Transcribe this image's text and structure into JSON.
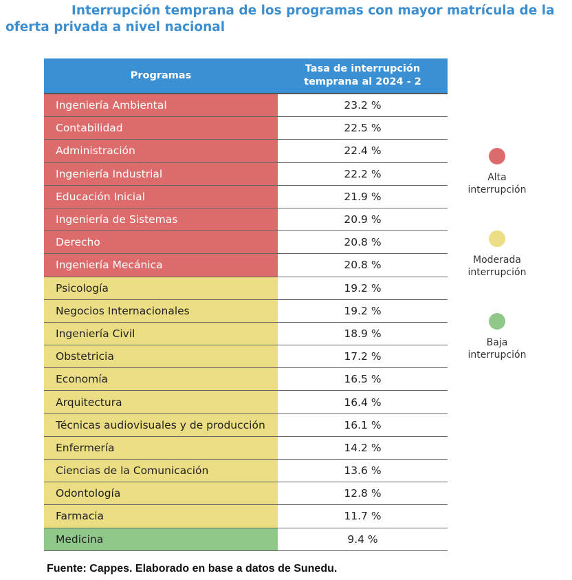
{
  "title_line1": "Interrupción temprana de los programas con mayor matrícula de la",
  "title_line2": "oferta privada a nivel nacional",
  "colors": {
    "header": "#3a90d2",
    "alta": "#dd6b6b",
    "moderada": "#ebdd84",
    "baja": "#8fc98a",
    "title": "#3b8fd1"
  },
  "chart_data": {
    "type": "table",
    "columns": [
      "Programas",
      "Tasa de interrupción temprana al 2024 - 2"
    ],
    "rows": [
      {
        "program": "Ingeniería Ambiental",
        "rate": "23.2 %",
        "level": "alta"
      },
      {
        "program": "Contabilidad",
        "rate": "22.5 %",
        "level": "alta"
      },
      {
        "program": "Administración",
        "rate": "22.4 %",
        "level": "alta"
      },
      {
        "program": "Ingeniería Industrial",
        "rate": "22.2 %",
        "level": "alta"
      },
      {
        "program": "Educación Inicial",
        "rate": "21.9 %",
        "level": "alta"
      },
      {
        "program": "Ingeniería de Sistemas",
        "rate": "20.9 %",
        "level": "alta"
      },
      {
        "program": "Derecho",
        "rate": "20.8 %",
        "level": "alta"
      },
      {
        "program": "Ingeniería Mecánica",
        "rate": "20.8 %",
        "level": "alta"
      },
      {
        "program": "Psicología",
        "rate": "19.2 %",
        "level": "moderada"
      },
      {
        "program": "Negocios Internacionales",
        "rate": "19.2 %",
        "level": "moderada"
      },
      {
        "program": "Ingeniería Civil",
        "rate": "18.9 %",
        "level": "moderada"
      },
      {
        "program": "Obstetricia",
        "rate": "17.2 %",
        "level": "moderada"
      },
      {
        "program": "Economía",
        "rate": "16.5 %",
        "level": "moderada"
      },
      {
        "program": "Arquitectura",
        "rate": "16.4 %",
        "level": "moderada"
      },
      {
        "program": "Técnicas audiovisuales y de producción",
        "rate": "16.1 %",
        "level": "moderada"
      },
      {
        "program": "Enfermería",
        "rate": "14.2 %",
        "level": "moderada"
      },
      {
        "program": "Ciencias de la Comunicación",
        "rate": "13.6 %",
        "level": "moderada"
      },
      {
        "program": "Odontología",
        "rate": "12.8 %",
        "level": "moderada"
      },
      {
        "program": "Farmacia",
        "rate": "11.7 %",
        "level": "moderada"
      },
      {
        "program": "Medicina",
        "rate": "9.4 %",
        "level": "baja"
      }
    ]
  },
  "legend": [
    {
      "key": "alta",
      "line1": "Alta",
      "line2": "interrupción"
    },
    {
      "key": "moderada",
      "line1": "Moderada",
      "line2": "interrupción"
    },
    {
      "key": "baja",
      "line1": "Baja",
      "line2": "interrupción"
    }
  ],
  "source": "Fuente: Cappes. Elaborado en base a datos de Sunedu."
}
